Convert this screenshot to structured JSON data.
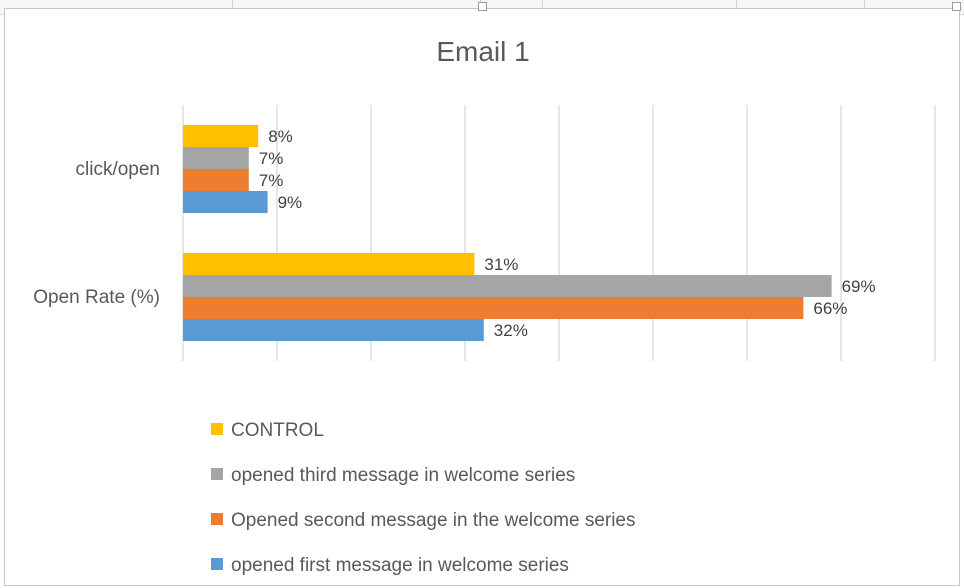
{
  "chart_data": {
    "type": "bar",
    "orientation": "horizontal",
    "title": "Email 1",
    "categories": [
      "click/open",
      "Open Rate (%)"
    ],
    "series": [
      {
        "name": "CONTROL",
        "color": "#FFC000",
        "values": [
          8,
          31
        ],
        "labels": [
          "8%",
          "31%"
        ]
      },
      {
        "name": "opened third message in welcome series",
        "color": "#A5A5A5",
        "values": [
          7,
          69
        ],
        "labels": [
          "7%",
          "69%"
        ]
      },
      {
        "name": "Opened second message in the welcome series",
        "color": "#ED7D31",
        "values": [
          7,
          66
        ],
        "labels": [
          "7%",
          "66%"
        ]
      },
      {
        "name": "opened first message in welcome series",
        "color": "#5B9BD5",
        "values": [
          9,
          32
        ],
        "labels": [
          "9%",
          "32%"
        ]
      }
    ],
    "xlim": [
      0,
      80
    ],
    "xlabel": "",
    "ylabel": "",
    "grid": true,
    "legend_position": "bottom"
  }
}
